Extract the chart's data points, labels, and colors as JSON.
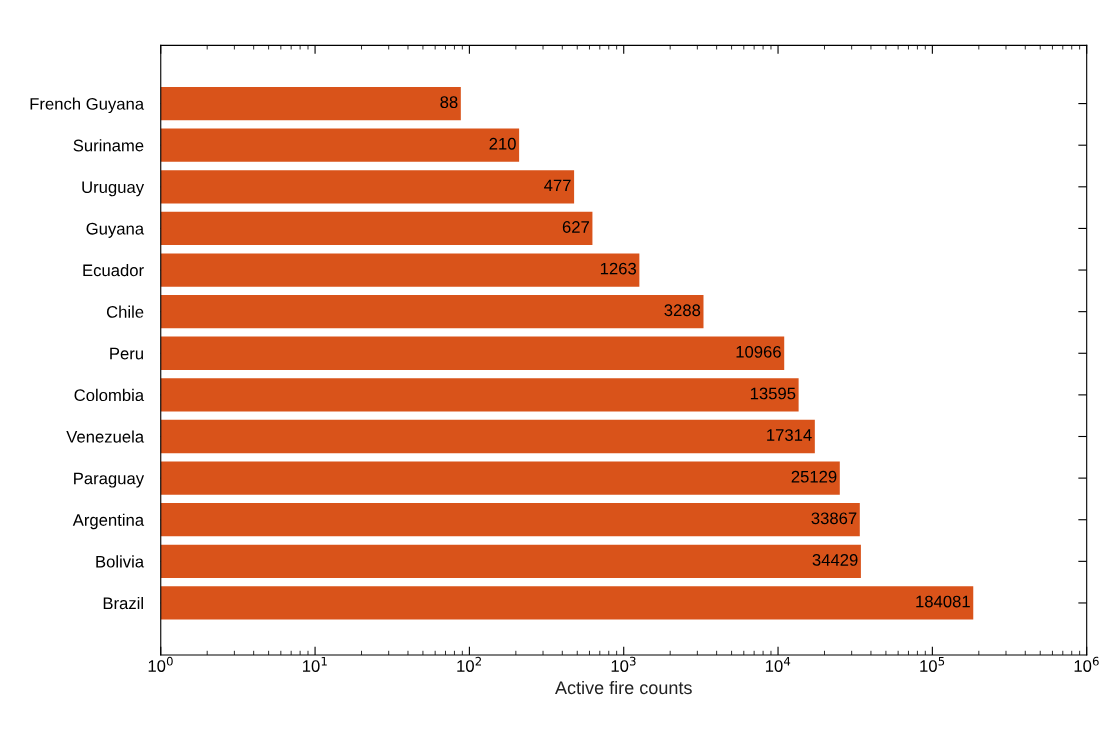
{
  "chart_data": {
    "type": "bar",
    "orientation": "horizontal",
    "xlabel": "Active fire counts",
    "categories": [
      "French Guyana",
      "Suriname",
      "Uruguay",
      "Guyana",
      "Ecuador",
      "Chile",
      "Peru",
      "Colombia",
      "Venezuela",
      "Paraguay",
      "Argentina",
      "Bolivia",
      "Brazil"
    ],
    "values": [
      88,
      210,
      477,
      627,
      1263,
      3288,
      10966,
      13595,
      17314,
      25129,
      33867,
      34429,
      184081
    ],
    "color": "#d9531a",
    "data_labels": true,
    "log": "x",
    "xlim": [
      1,
      1000000
    ],
    "xticks": [
      {
        "value": 1,
        "label": "10$^{0}$"
      },
      {
        "value": 10,
        "label": "10$^{1}$"
      },
      {
        "value": 100,
        "label": "10$^{2}$"
      },
      {
        "value": 1000,
        "label": "10$^{3}$"
      },
      {
        "value": 10000,
        "label": "10$^{4}$"
      },
      {
        "value": 100000,
        "label": "10$^{5}$"
      },
      {
        "value": 1000000,
        "label": "10$^{6}$"
      }
    ],
    "grid": false,
    "legend": false
  }
}
